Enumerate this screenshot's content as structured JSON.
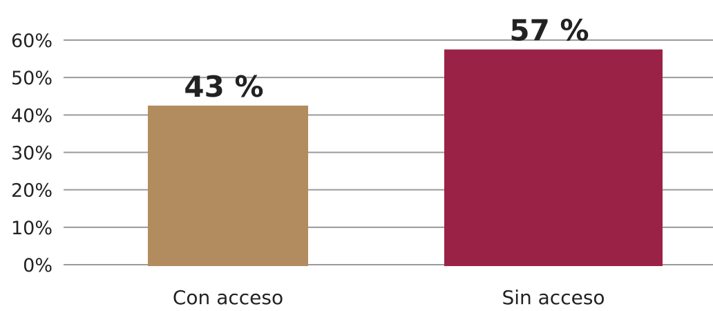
{
  "chart_data": {
    "type": "bar",
    "title": "",
    "xlabel": "",
    "ylabel": "",
    "categories": [
      "Con acceso",
      "Sin acceso"
    ],
    "values": [
      42.5,
      57.5
    ],
    "data_labels": [
      "43 %",
      "57 %"
    ],
    "bar_colors": [
      "#b28c5e",
      "#9b2247"
    ],
    "ylim": [
      0,
      60
    ],
    "y_ticks": [
      0,
      10,
      20,
      30,
      40,
      50,
      60
    ],
    "y_tick_labels": [
      "0%",
      "10%",
      "20%",
      "30%",
      "40%",
      "50%",
      "60%"
    ],
    "grid": true,
    "legend": "none"
  }
}
